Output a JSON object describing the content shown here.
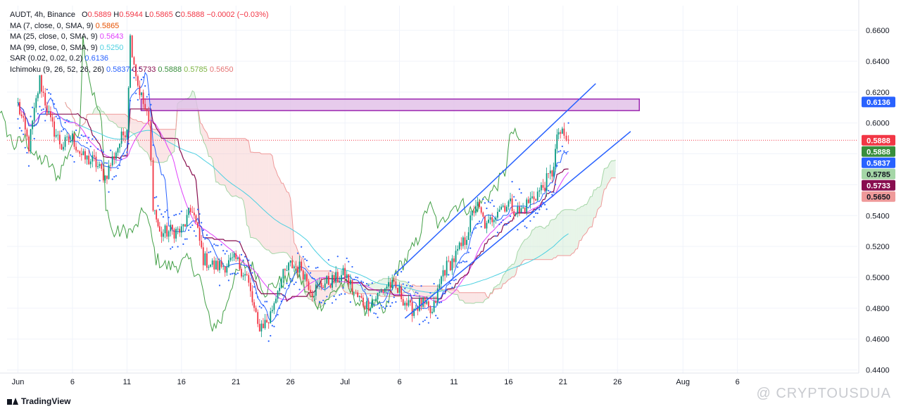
{
  "chart_data": {
    "type": "candlestick",
    "symbol_line": "AUDT, 4h, Binance",
    "ohlc_text": {
      "open_label": "O",
      "open": "0.5889",
      "high_label": "H",
      "high": "0.5944",
      "low_label": "L",
      "low": "0.5865",
      "close_label": "C",
      "close": "0.5888",
      "change": "−0.0002 (−0.03%)"
    },
    "indicators": [
      {
        "label": "MA (7, close, 0, SMA, 9)",
        "value": "0.5865",
        "color": "#e65100"
      },
      {
        "label": "MA (25, close, 0, SMA, 9)",
        "value": "0.5643",
        "color": "#e040fb"
      },
      {
        "label": "MA (99, close, 0, SMA, 9)",
        "value": "0.5250",
        "color": "#4dd0e1"
      },
      {
        "label": "SAR (0.02, 0.02, 0.2)",
        "value": "0.6136",
        "color": "#2962ff"
      },
      {
        "label": "Ichimoku (9, 26, 52, 26, 26)",
        "values": [
          "0.5837",
          "0.5733",
          "0.5888",
          "0.5785",
          "0.5650"
        ],
        "colors": [
          "#2962ff",
          "#880e4f",
          "#388e3c",
          "#a5d6a7",
          "#ef9a9a"
        ]
      }
    ],
    "y_axis": {
      "ylim": [
        0.438,
        0.676
      ],
      "ticks": [
        0.66,
        0.64,
        0.62,
        0.6,
        0.58,
        0.56,
        0.54,
        0.52,
        0.5,
        0.48,
        0.46,
        0.44
      ],
      "tick_labels": [
        "0.6600",
        "0.6400",
        "0.6200",
        "0.6000",
        "0.5800",
        "0.5600",
        "0.5400",
        "0.5200",
        "0.5000",
        "0.4800",
        "0.4600",
        "0.4400"
      ]
    },
    "x_axis": {
      "xlim": [
        -1,
        77
      ],
      "ticks": [
        {
          "day": 0,
          "label": "Jun"
        },
        {
          "day": 5,
          "label": "6"
        },
        {
          "day": 10,
          "label": "11"
        },
        {
          "day": 15,
          "label": "16"
        },
        {
          "day": 20,
          "label": "21"
        },
        {
          "day": 25,
          "label": "26"
        },
        {
          "day": 30,
          "label": "Jul"
        },
        {
          "day": 35,
          "label": "6"
        },
        {
          "day": 40,
          "label": "11"
        },
        {
          "day": 45,
          "label": "16"
        },
        {
          "day": 50,
          "label": "21"
        },
        {
          "day": 55,
          "label": "26"
        },
        {
          "day": 61,
          "label": "Aug"
        },
        {
          "day": 66,
          "label": "6"
        }
      ]
    },
    "price_labels": [
      {
        "value": 0.6136,
        "text": "0.6136",
        "color": "#2962ff",
        "text_color": "#ffffff"
      },
      {
        "value": 0.5888,
        "text": "0.5888",
        "color": "#f23645",
        "text_color": "#ffffff"
      },
      {
        "value": 0.5888,
        "text": "0.5888",
        "color": "#388e3c",
        "text_color": "#ffffff"
      },
      {
        "value": 0.5837,
        "text": "0.5837",
        "color": "#2962ff",
        "text_color": "#ffffff"
      },
      {
        "value": 0.5785,
        "text": "0.5785",
        "color": "#a5d6a7",
        "text_color": "#131722"
      },
      {
        "value": 0.5733,
        "text": "0.5733",
        "color": "#880e4f",
        "text_color": "#ffffff"
      },
      {
        "value": 0.565,
        "text": "0.5650",
        "color": "#ef9a9a",
        "text_color": "#131722"
      }
    ],
    "current_price": 0.5888,
    "resistance_zone": {
      "x0": 11.3,
      "x1": 57.0,
      "y_low": 0.608,
      "y_high": 0.6155,
      "fill": "#e1bee7",
      "stroke": "#9c27b0"
    },
    "channel_lines": [
      {
        "x0": 35.5,
        "y0": 0.4735,
        "x1": 56.2,
        "y1": 0.5945
      },
      {
        "x0": 34.5,
        "y0": 0.5015,
        "x1": 53.0,
        "y1": 0.6255
      }
    ],
    "keypoints": [
      [
        0,
        0.612
      ],
      [
        1,
        0.585
      ],
      [
        2,
        0.628
      ],
      [
        3,
        0.6
      ],
      [
        4,
        0.585
      ],
      [
        5,
        0.59
      ],
      [
        6,
        0.577
      ],
      [
        7,
        0.575
      ],
      [
        8,
        0.565
      ],
      [
        9,
        0.582
      ],
      [
        10,
        0.598
      ],
      [
        10.3,
        0.655
      ],
      [
        11,
        0.625
      ],
      [
        12,
        0.6
      ],
      [
        12.4,
        0.548
      ],
      [
        13,
        0.528
      ],
      [
        14,
        0.53
      ],
      [
        15,
        0.53
      ],
      [
        16,
        0.545
      ],
      [
        17,
        0.512
      ],
      [
        18,
        0.507
      ],
      [
        19,
        0.508
      ],
      [
        20,
        0.511
      ],
      [
        21,
        0.5
      ],
      [
        22,
        0.468
      ],
      [
        23,
        0.472
      ],
      [
        24,
        0.497
      ],
      [
        25,
        0.508
      ],
      [
        26,
        0.506
      ],
      [
        27,
        0.491
      ],
      [
        28,
        0.496
      ],
      [
        29,
        0.498
      ],
      [
        30,
        0.502
      ],
      [
        31,
        0.488
      ],
      [
        32,
        0.482
      ],
      [
        33,
        0.488
      ],
      [
        34,
        0.496
      ],
      [
        35,
        0.49
      ],
      [
        36,
        0.479
      ],
      [
        37,
        0.483
      ],
      [
        38,
        0.476
      ],
      [
        39,
        0.504
      ],
      [
        40,
        0.512
      ],
      [
        41,
        0.524
      ],
      [
        42,
        0.548
      ],
      [
        43,
        0.532
      ],
      [
        44,
        0.545
      ],
      [
        45,
        0.548
      ],
      [
        46,
        0.542
      ],
      [
        47,
        0.55
      ],
      [
        48,
        0.557
      ],
      [
        49,
        0.568
      ],
      [
        49.6,
        0.595
      ],
      [
        50.1,
        0.59
      ],
      [
        50.5,
        0.5888
      ]
    ],
    "colors": {
      "up": "#089981",
      "down": "#f23645",
      "grid": "#f0f3fa",
      "axis_text": "#131722",
      "current_line": "#f23645"
    }
  },
  "footer": {
    "brand": "TradingView",
    "watermark": "@ CRYPTOUSDUA"
  }
}
